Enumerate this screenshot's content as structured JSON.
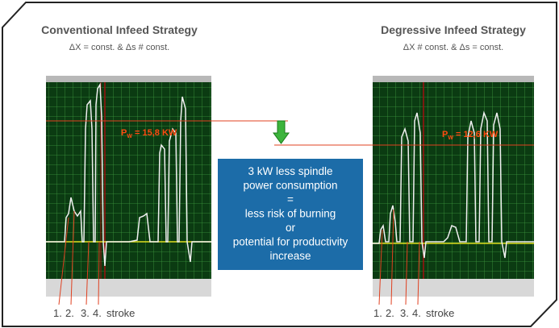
{
  "left": {
    "title": "Conventional Infeed Strategy",
    "subtitle": "ΔX = const.  &  Δs # const.",
    "power": {
      "symbol": "P",
      "sub": "W",
      "value": " = 15,8 KW"
    },
    "strokes": [
      "1.",
      "2.",
      "3.",
      "4.",
      "stroke"
    ]
  },
  "right": {
    "title": "Degressive Infeed Strategy",
    "subtitle": "ΔX # const.  &  Δs = const.",
    "power": {
      "symbol": "P",
      "sub": "W",
      "value": " = 12,6 KW"
    },
    "strokes": [
      "1.",
      "2.",
      "3.",
      "4.",
      "stroke"
    ]
  },
  "message": {
    "lines": [
      "3 kW less spindle",
      "power consumption",
      "=",
      "less risk of burning",
      "or",
      "potential for productivity",
      "increase"
    ]
  }
}
